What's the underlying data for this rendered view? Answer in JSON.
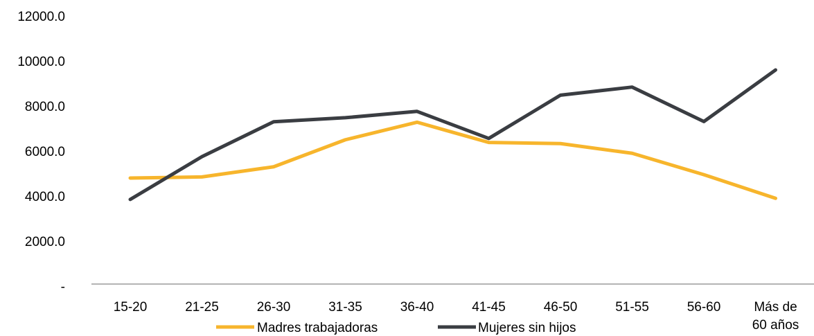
{
  "chart_data": {
    "type": "line",
    "categories": [
      "15-20",
      "21-25",
      "26-30",
      "31-35",
      "36-40",
      "41-45",
      "46-50",
      "51-55",
      "56-60",
      "Más de 60 años"
    ],
    "category_label_lines": [
      [
        "15-20"
      ],
      [
        "21-25"
      ],
      [
        "26-30"
      ],
      [
        "31-35"
      ],
      [
        "36-40"
      ],
      [
        "41-45"
      ],
      [
        "46-50"
      ],
      [
        "51-55"
      ],
      [
        "56-60"
      ],
      [
        "Más de",
        "60 años"
      ]
    ],
    "series": [
      {
        "name": "Madres trabajadoras",
        "color": "#f7b52c",
        "values": [
          4800,
          4850,
          5300,
          6500,
          7280,
          6380,
          6330,
          5900,
          4950,
          3900
        ]
      },
      {
        "name": "Mujeres sin hijos",
        "color": "#3a3d42",
        "values": [
          3850,
          5750,
          7300,
          7480,
          7760,
          6560,
          8480,
          8840,
          7310,
          9600
        ]
      }
    ],
    "y_ticks": [
      0,
      2000,
      4000,
      6000,
      8000,
      10000,
      12000
    ],
    "y_tick_labels": [
      "-",
      "2000.0",
      "4000.0",
      "6000.0",
      "8000.0",
      "10000.0",
      "12000.0"
    ],
    "ylim": [
      0,
      12000
    ],
    "grid": false,
    "legend_position": "bottom",
    "axis_color": "#9a9a9a"
  }
}
